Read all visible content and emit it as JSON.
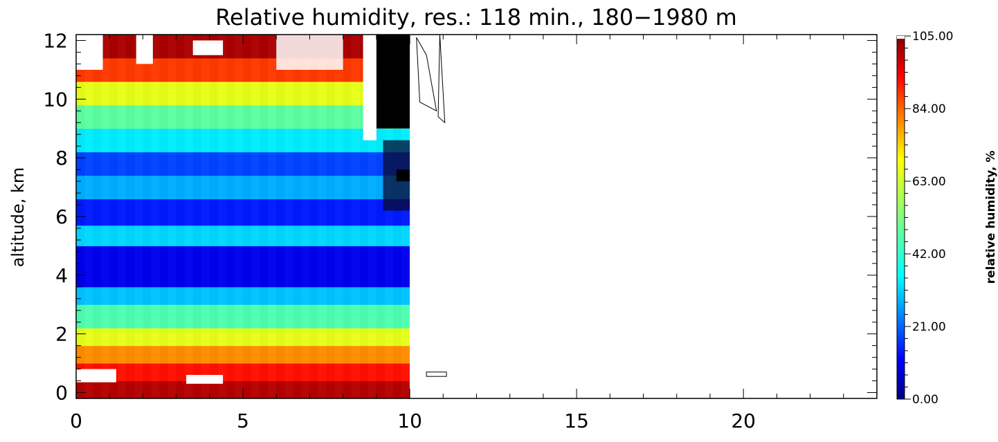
{
  "chart_data": {
    "type": "heatmap",
    "title": "Relative humidity, res.: 118 min., 180−1980 m",
    "xlabel": "",
    "ylabel": "altitude, km",
    "xlim": [
      0,
      24
    ],
    "ylim": [
      -0.2,
      12.2
    ],
    "x_ticks": [
      "0",
      "5",
      "10",
      "15",
      "20"
    ],
    "x_tick_values": [
      0,
      5,
      10,
      15,
      20
    ],
    "y_ticks": [
      "0",
      "2",
      "4",
      "6",
      "8",
      "10",
      "12"
    ],
    "y_tick_values": [
      0,
      2,
      4,
      6,
      8,
      10,
      12
    ],
    "data_x_range": [
      0,
      10
    ],
    "bands": [
      {
        "alt": [
          -0.2,
          0.4
        ],
        "rh": 100
      },
      {
        "alt": [
          0.4,
          1.0
        ],
        "rh": 92
      },
      {
        "alt": [
          1.0,
          1.6
        ],
        "rh": 80
      },
      {
        "alt": [
          1.6,
          2.2
        ],
        "rh": 66
      },
      {
        "alt": [
          2.2,
          3.0
        ],
        "rh": 46
      },
      {
        "alt": [
          3.0,
          3.6
        ],
        "rh": 30
      },
      {
        "alt": [
          3.6,
          5.0
        ],
        "rh": 10
      },
      {
        "alt": [
          5.0,
          5.7
        ],
        "rh": 32
      },
      {
        "alt": [
          5.7,
          6.6
        ],
        "rh": 14
      },
      {
        "alt": [
          6.6,
          7.4
        ],
        "rh": 28
      },
      {
        "alt": [
          7.4,
          8.2
        ],
        "rh": 18
      },
      {
        "alt": [
          8.2,
          9.0
        ],
        "rh": 34
      },
      {
        "alt": [
          9.0,
          9.8
        ],
        "rh": 48
      },
      {
        "alt": [
          9.8,
          10.6
        ],
        "rh": 66
      },
      {
        "alt": [
          10.6,
          11.4
        ],
        "rh": 88
      },
      {
        "alt": [
          11.4,
          12.2
        ],
        "rh": 101
      }
    ],
    "colorbar": {
      "label": "relative humidity, %",
      "ticks": [
        "0.00",
        "21.00",
        "42.00",
        "63.00",
        "84.00",
        "105.00"
      ],
      "tick_values": [
        0,
        21,
        42,
        63,
        84,
        105
      ],
      "range": [
        0,
        105
      ]
    },
    "missing_color": "#000000",
    "saturated_color": "#ffffff"
  }
}
